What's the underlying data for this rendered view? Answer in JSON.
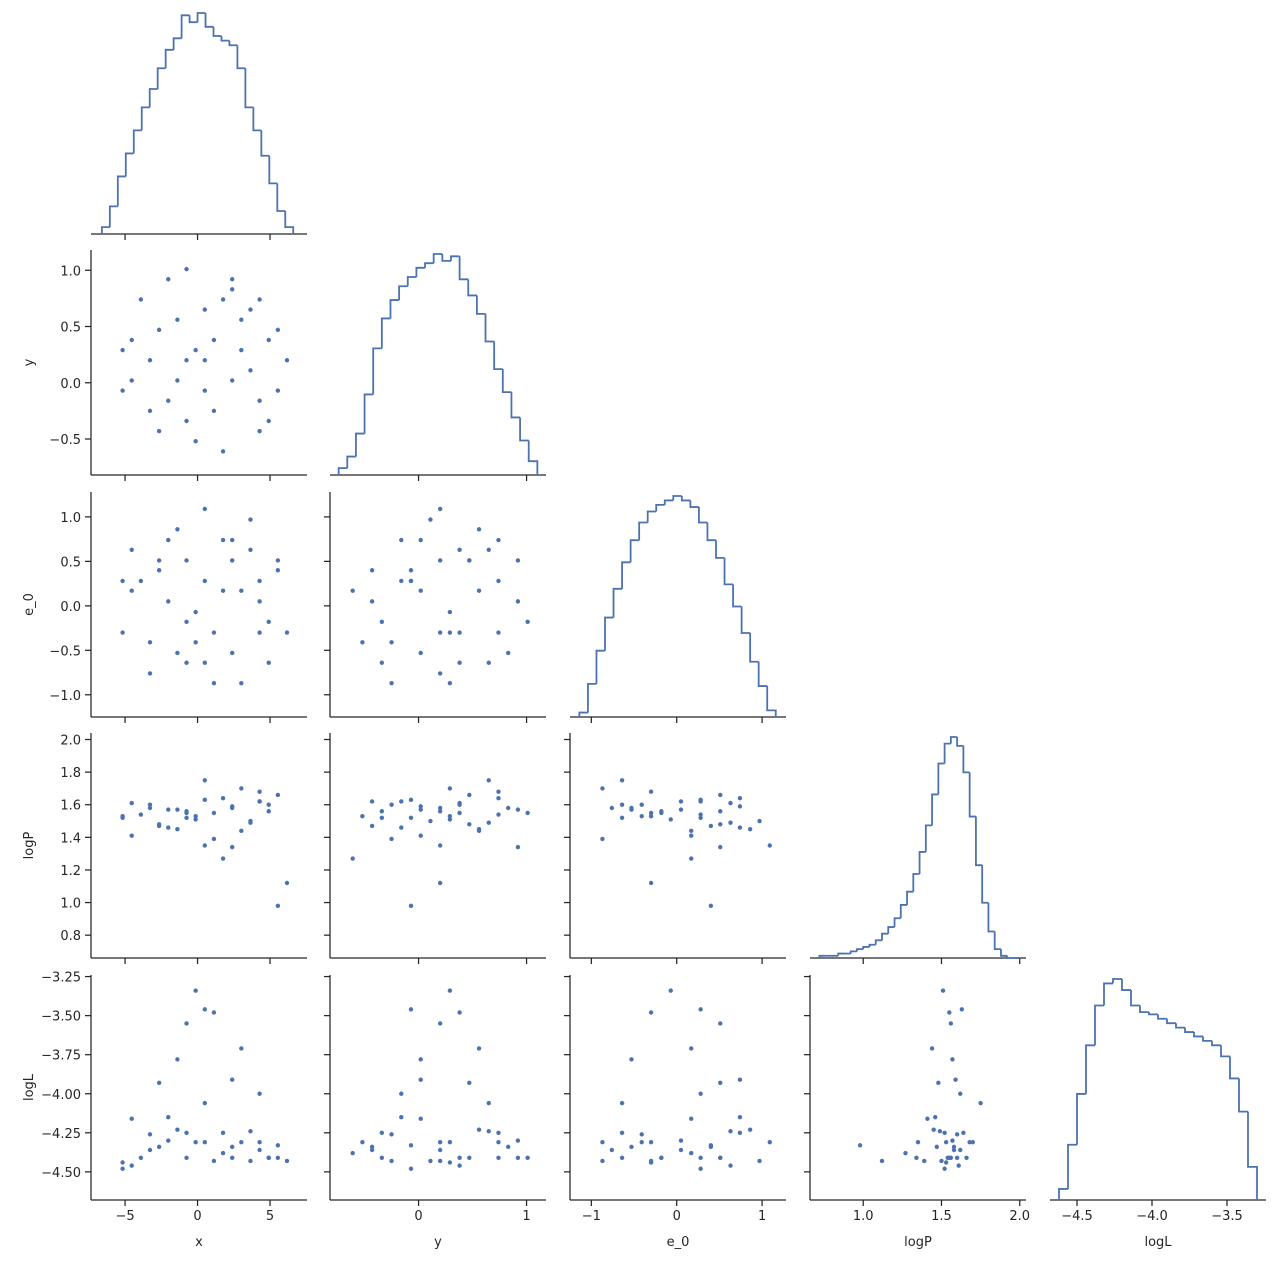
{
  "chart_data": {
    "type": "pairplot",
    "color": "#4c72b0",
    "variables": [
      {
        "name": "x",
        "lim": [
          -7.35,
          7.55
        ],
        "xticks": [
          {
            "value": -5,
            "label": "−5"
          },
          0,
          5
        ],
        "values": [
          1.13,
          -2.65,
          4.28,
          -4.54,
          2.39,
          -0.76,
          5.54,
          0.5,
          -2.02,
          3.65,
          -3.28,
          1.76,
          -5.17,
          3.02,
          -1.39,
          4.91,
          0.5,
          -0.13,
          6.17,
          -3.91,
          2.39,
          -2.65,
          4.28,
          -0.76,
          1.13,
          -4.54,
          3.65,
          -1.39,
          3.02,
          1.76,
          -3.28,
          5.54,
          -0.13,
          0.5,
          -2.02,
          4.91,
          -5.17,
          2.39,
          -0.76,
          4.28
        ],
        "hist": {
          "bins": [
            -6.6,
            -6.05,
            -5.5,
            -4.95,
            -4.4,
            -3.85,
            -3.3,
            -2.75,
            -2.2,
            -1.65,
            -1.1,
            -0.55,
            0,
            0.55,
            1.1,
            1.65,
            2.2,
            2.75,
            3.3,
            3.85,
            4.4,
            4.95,
            5.5,
            6.05,
            6.6
          ],
          "counts": [
            3,
            12,
            25,
            35,
            45,
            55,
            63,
            72,
            80,
            85,
            95,
            92,
            96,
            90,
            86,
            84,
            82,
            72,
            55,
            45,
            34,
            22,
            10,
            3
          ]
        }
      },
      {
        "name": "y",
        "lim": [
          -0.82,
          1.18
        ],
        "xticks": [
          0,
          1
        ],
        "yticks": [
          {
            "value": -0.5,
            "label": "−0.5"
          },
          {
            "value": 0,
            "label": "0.0"
          },
          {
            "value": 0.5,
            "label": "0.5"
          },
          {
            "value": 1,
            "label": "1.0"
          }
        ],
        "values": [
          0.38,
          0.47,
          -0.16,
          0.02,
          0.83,
          -0.34,
          0.47,
          0.2,
          0.92,
          0.65,
          -0.25,
          -0.61,
          0.29,
          0.29,
          0.56,
          -0.34,
          -0.07,
          0.29,
          0.2,
          0.74,
          0.02,
          -0.43,
          0.74,
          1.01,
          -0.25,
          0.38,
          0.11,
          0.02,
          0.56,
          0.74,
          0.2,
          -0.07,
          -0.52,
          0.65,
          -0.16,
          0.38,
          -0.07,
          0.92,
          0.2,
          -0.43
        ],
        "hist": {
          "bins": [
            -0.74,
            -0.66,
            -0.58,
            -0.5,
            -0.42,
            -0.34,
            -0.26,
            -0.18,
            -0.1,
            -0.02,
            0.06,
            0.14,
            0.22,
            0.3,
            0.38,
            0.46,
            0.54,
            0.62,
            0.7,
            0.78,
            0.86,
            0.94,
            1.02,
            1.1
          ],
          "counts": [
            3,
            8,
            18,
            35,
            55,
            68,
            76,
            82,
            86,
            90,
            92,
            96,
            93,
            95,
            85,
            78,
            70,
            58,
            46,
            36,
            25,
            15,
            6
          ]
        }
      },
      {
        "name": "e_0",
        "lim": [
          -1.25,
          1.28
        ],
        "xticks": [
          {
            "value": -1,
            "label": "−1"
          },
          0,
          1
        ],
        "yticks": [
          {
            "value": -1,
            "label": "−1.0"
          },
          {
            "value": -0.5,
            "label": "−0.5"
          },
          {
            "value": 0,
            "label": "0.0"
          },
          {
            "value": 0.5,
            "label": "0.5"
          },
          {
            "value": 1,
            "label": "1.0"
          }
        ],
        "values": [
          -0.3,
          0.51,
          0.28,
          0.17,
          -0.53,
          -0.64,
          0.51,
          1.09,
          0.05,
          0.63,
          -0.41,
          0.17,
          -0.3,
          -0.87,
          0.86,
          -0.18,
          0.28,
          -0.07,
          -0.3,
          0.28,
          0.74,
          0.4,
          -0.3,
          -0.18,
          -0.87,
          0.63,
          0.97,
          -0.53,
          0.17,
          0.74,
          -0.76,
          0.4,
          -0.41,
          -0.64,
          0.74,
          -0.64,
          0.28,
          0.51,
          0.51,
          0.05
        ],
        "hist": {
          "bins": [
            -1.14,
            -1.04,
            -0.94,
            -0.84,
            -0.74,
            -0.64,
            -0.54,
            -0.44,
            -0.34,
            -0.24,
            -0.14,
            -0.04,
            0.06,
            0.16,
            0.26,
            0.36,
            0.46,
            0.56,
            0.66,
            0.76,
            0.86,
            0.96,
            1.06,
            1.16
          ],
          "counts": [
            2,
            15,
            30,
            45,
            58,
            70,
            80,
            88,
            93,
            96,
            98,
            100,
            98,
            95,
            88,
            80,
            72,
            60,
            50,
            38,
            25,
            14,
            3
          ]
        }
      },
      {
        "name": "logP",
        "lim": [
          0.66,
          2.04
        ],
        "xticks": [
          {
            "value": 1,
            "label": "1.0"
          },
          {
            "value": 1.5,
            "label": "1.5"
          },
          {
            "value": 2,
            "label": "2.0"
          }
        ],
        "yticks": [
          {
            "value": 0.8,
            "label": "0.8"
          },
          {
            "value": 1,
            "label": "1.0"
          },
          {
            "value": 1.2,
            "label": "1.2"
          },
          {
            "value": 1.4,
            "label": "1.4"
          },
          {
            "value": 1.6,
            "label": "1.6"
          },
          {
            "value": 1.8,
            "label": "1.8"
          },
          {
            "value": 2,
            "label": "2.0"
          }
        ],
        "values": [
          1.55,
          1.48,
          1.62,
          1.41,
          1.58,
          1.52,
          1.66,
          1.35,
          1.57,
          1.49,
          1.6,
          1.27,
          1.53,
          1.7,
          1.45,
          1.56,
          1.63,
          1.51,
          1.12,
          1.54,
          1.59,
          1.47,
          1.68,
          1.55,
          1.39,
          1.61,
          1.5,
          1.57,
          1.44,
          1.64,
          1.58,
          0.98,
          1.53,
          1.75,
          1.46,
          1.6,
          1.52,
          1.34,
          1.56,
          1.62
        ],
        "hist": {
          "bins": [
            0.72,
            0.76,
            0.8,
            0.84,
            0.88,
            0.92,
            0.96,
            1.0,
            1.04,
            1.08,
            1.12,
            1.16,
            1.2,
            1.24,
            1.28,
            1.32,
            1.36,
            1.4,
            1.44,
            1.48,
            1.52,
            1.56,
            1.6,
            1.64,
            1.68,
            1.72,
            1.76,
            1.8,
            1.84,
            1.88,
            1.92,
            1.96,
            2.0
          ],
          "counts": [
            1,
            1,
            1,
            2,
            2,
            3,
            4,
            5,
            6,
            8,
            11,
            14,
            18,
            24,
            30,
            38,
            48,
            60,
            74,
            88,
            97,
            100,
            96,
            84,
            64,
            42,
            25,
            12,
            4,
            1,
            0,
            0
          ]
        }
      },
      {
        "name": "logL",
        "lim": [
          -4.68,
          -3.24
        ],
        "xticks": [
          {
            "value": -4.5,
            "label": "−4.5"
          },
          {
            "value": -4,
            "label": "−4.0"
          },
          {
            "value": -3.5,
            "label": "−3.5"
          }
        ],
        "yticks": [
          {
            "value": -4.5,
            "label": "−4.50"
          },
          {
            "value": -4.25,
            "label": "−4.25"
          },
          {
            "value": -4,
            "label": "−4.00"
          },
          {
            "value": -3.75,
            "label": "−3.75"
          },
          {
            "value": -3.5,
            "label": "−3.50"
          },
          {
            "value": -3.25,
            "label": "−3.25"
          }
        ],
        "values": [
          -3.48,
          -3.93,
          -4.0,
          -4.16,
          -4.34,
          -4.25,
          -4.41,
          -4.31,
          -4.3,
          -4.24,
          -4.26,
          -4.38,
          -4.44,
          -4.31,
          -4.23,
          -4.41,
          -3.46,
          -3.34,
          -4.43,
          -4.41,
          -3.91,
          -4.34,
          -4.31,
          -4.41,
          -4.43,
          -4.46,
          -4.43,
          -3.78,
          -3.71,
          -4.25,
          -4.36,
          -4.33,
          -4.31,
          -4.06,
          -4.15,
          -4.41,
          -4.48,
          -4.41,
          -3.55,
          -4.36
        ],
        "hist": {
          "bins": [
            -4.62,
            -4.56,
            -4.5,
            -4.44,
            -4.38,
            -4.32,
            -4.26,
            -4.2,
            -4.14,
            -4.08,
            -4.02,
            -3.96,
            -3.9,
            -3.84,
            -3.78,
            -3.72,
            -3.66,
            -3.6,
            -3.54,
            -3.48,
            -3.42,
            -3.36,
            -3.3
          ],
          "counts": [
            5,
            25,
            48,
            70,
            88,
            98,
            100,
            95,
            88,
            85,
            84,
            82,
            80,
            78,
            76,
            74,
            72,
            70,
            65,
            55,
            40,
            15
          ]
        }
      }
    ]
  }
}
